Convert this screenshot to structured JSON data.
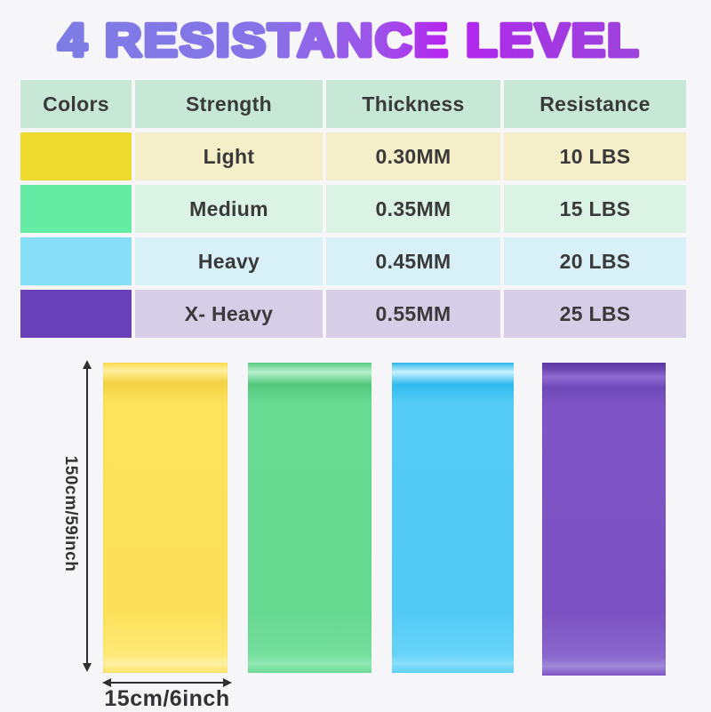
{
  "title": "4  RESISTANCE LEVEL",
  "table": {
    "headers": [
      "Colors",
      "Strength",
      "Thickness",
      "Resistance"
    ],
    "rows": [
      {
        "color_name": "yellow",
        "swatch": "#eed92d",
        "tint": "#f4eec9",
        "strength": "Light",
        "thickness": "0.30MM",
        "resistance": "10 LBS"
      },
      {
        "color_name": "green",
        "swatch": "#64eca4",
        "tint": "#daf3e5",
        "strength": "Medium",
        "thickness": "0.35MM",
        "resistance": "15 LBS"
      },
      {
        "color_name": "blue",
        "swatch": "#86def8",
        "tint": "#d8f0f8",
        "strength": "Heavy",
        "thickness": "0.45MM",
        "resistance": "20 LBS"
      },
      {
        "color_name": "purple",
        "swatch": "#6841b9",
        "tint": "#d6cde7",
        "strength": "X- Heavy",
        "thickness": "0.55MM",
        "resistance": "25 LBS"
      }
    ],
    "header_bg": "#c8e8d7",
    "text_color": "#3a3a3a"
  },
  "bands": [
    {
      "name": "yellow-band",
      "color": "#fde25c"
    },
    {
      "name": "green-band",
      "color": "#68da92"
    },
    {
      "name": "blue-band",
      "color": "#54ccf7"
    },
    {
      "name": "purple-band",
      "color": "#7e55c6"
    }
  ],
  "dimensions": {
    "height_label": "150cm/59inch",
    "width_label": "15cm/6inch",
    "arrow_color": "#2f2f2f"
  },
  "icons": {
    "height_arrow": "double-headed-vertical-arrow",
    "width_arrow": "double-headed-horizontal-arrow"
  },
  "colors": {
    "background": "#f6f5f7",
    "title_gradient": [
      "#7d7ce5",
      "#9c55e9",
      "#b723f0",
      "#9d44dd"
    ]
  }
}
